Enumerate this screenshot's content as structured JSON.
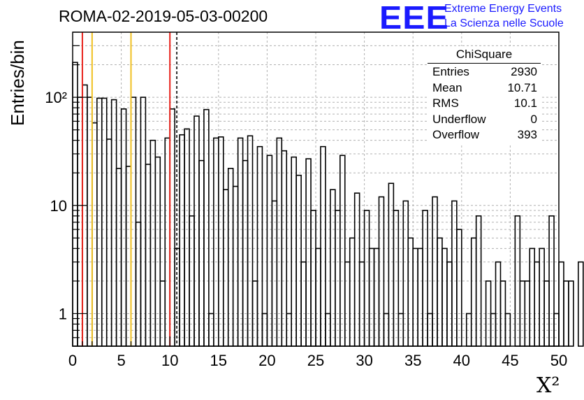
{
  "header": {
    "title": "ROMA-02-2019-05-03-00200",
    "logo": "EEE",
    "logo_line1": "Extreme Energy Events",
    "logo_line2": "La Scienza nelle Scuole"
  },
  "stats": {
    "title": "ChiSquare",
    "rows": [
      {
        "key": "Entries",
        "value": "2930"
      },
      {
        "key": "Mean",
        "value": "10.71"
      },
      {
        "key": "RMS",
        "value": "10.1"
      },
      {
        "key": "Underflow",
        "value": "0"
      },
      {
        "key": "Overflow",
        "value": "393"
      }
    ]
  },
  "chart_data": {
    "type": "bar",
    "histogram": true,
    "title": "ROMA-02-2019-05-03-00200",
    "xlabel": "X²",
    "ylabel": "Entries/bin",
    "xlim": [
      0,
      50
    ],
    "ylim": [
      0.5,
      400
    ],
    "yscale": "log",
    "grid": true,
    "bin_width": 0.5,
    "x_ticks": [
      "0",
      "5",
      "10",
      "15",
      "20",
      "25",
      "30",
      "35",
      "40",
      "45",
      "50"
    ],
    "y_ticks": [
      "1",
      "10",
      "10²"
    ],
    "values": [
      210,
      100,
      130,
      100,
      58,
      98,
      98,
      41,
      95,
      22,
      78,
      23,
      100,
      7,
      100,
      24,
      40,
      28,
      2,
      42,
      78,
      4,
      45,
      51,
      8,
      67,
      26,
      77,
      1,
      42,
      43,
      14,
      22,
      15,
      42,
      26,
      44,
      2,
      35,
      1,
      29,
      11,
      42,
      32,
      1,
      28,
      19,
      3,
      27,
      9,
      4,
      35,
      1,
      14,
      9,
      29,
      3,
      5,
      13,
      3,
      9,
      4,
      4,
      12,
      1,
      16,
      9,
      1,
      11,
      5,
      4,
      4,
      9,
      1,
      12,
      5,
      4,
      3,
      11,
      6,
      0.1,
      1,
      5,
      8,
      0,
      2,
      1,
      3,
      2,
      1,
      0.1,
      8,
      2,
      2,
      4,
      3,
      4,
      2,
      8,
      1,
      3,
      2,
      2,
      0.1,
      3
    ],
    "vertical_lines": [
      {
        "x": 1.0,
        "color": "#e8221b",
        "style": "solid"
      },
      {
        "x": 2.0,
        "color": "#f0c020",
        "style": "solid"
      },
      {
        "x": 6.0,
        "color": "#f0c020",
        "style": "solid"
      },
      {
        "x": 10.0,
        "color": "#e8221b",
        "style": "solid"
      },
      {
        "x": 10.71,
        "color": "#000000",
        "style": "dashed"
      }
    ]
  }
}
